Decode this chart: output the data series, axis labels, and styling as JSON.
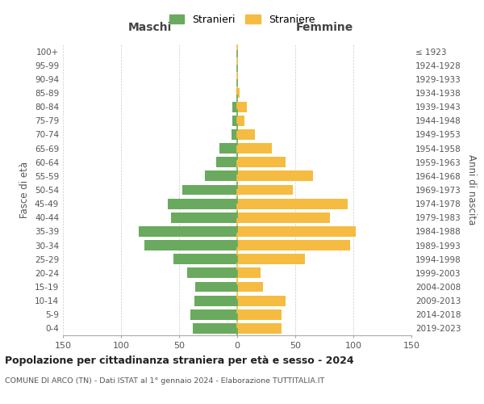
{
  "age_groups": [
    "0-4",
    "5-9",
    "10-14",
    "15-19",
    "20-24",
    "25-29",
    "30-34",
    "35-39",
    "40-44",
    "45-49",
    "50-54",
    "55-59",
    "60-64",
    "65-69",
    "70-74",
    "75-79",
    "80-84",
    "85-89",
    "90-94",
    "95-99",
    "100+"
  ],
  "birth_years": [
    "2019-2023",
    "2014-2018",
    "2009-2013",
    "2004-2008",
    "1999-2003",
    "1994-1998",
    "1989-1993",
    "1984-1988",
    "1979-1983",
    "1974-1978",
    "1969-1973",
    "1964-1968",
    "1959-1963",
    "1954-1958",
    "1949-1953",
    "1944-1948",
    "1939-1943",
    "1934-1938",
    "1929-1933",
    "1924-1928",
    "≤ 1923"
  ],
  "males": [
    38,
    40,
    37,
    36,
    43,
    55,
    80,
    85,
    57,
    60,
    47,
    28,
    18,
    15,
    5,
    4,
    4,
    1,
    0,
    0,
    0
  ],
  "females": [
    38,
    38,
    42,
    22,
    20,
    58,
    97,
    102,
    80,
    95,
    48,
    65,
    42,
    30,
    15,
    6,
    8,
    2,
    1,
    0,
    0
  ],
  "male_color": "#6aaa5e",
  "female_color": "#f5bc41",
  "center_line_color": "#888888",
  "grid_color": "#cccccc",
  "title": "Popolazione per cittadinanza straniera per età e sesso - 2024",
  "subtitle": "COMUNE DI ARCO (TN) - Dati ISTAT al 1° gennaio 2024 - Elaborazione TUTTITALIA.IT",
  "header_left": "Maschi",
  "header_right": "Femmine",
  "ylabel_left": "Fasce di età",
  "ylabel_right": "Anni di nascita",
  "legend_male": "Stranieri",
  "legend_female": "Straniere",
  "xlim": 150,
  "bar_height": 0.75
}
